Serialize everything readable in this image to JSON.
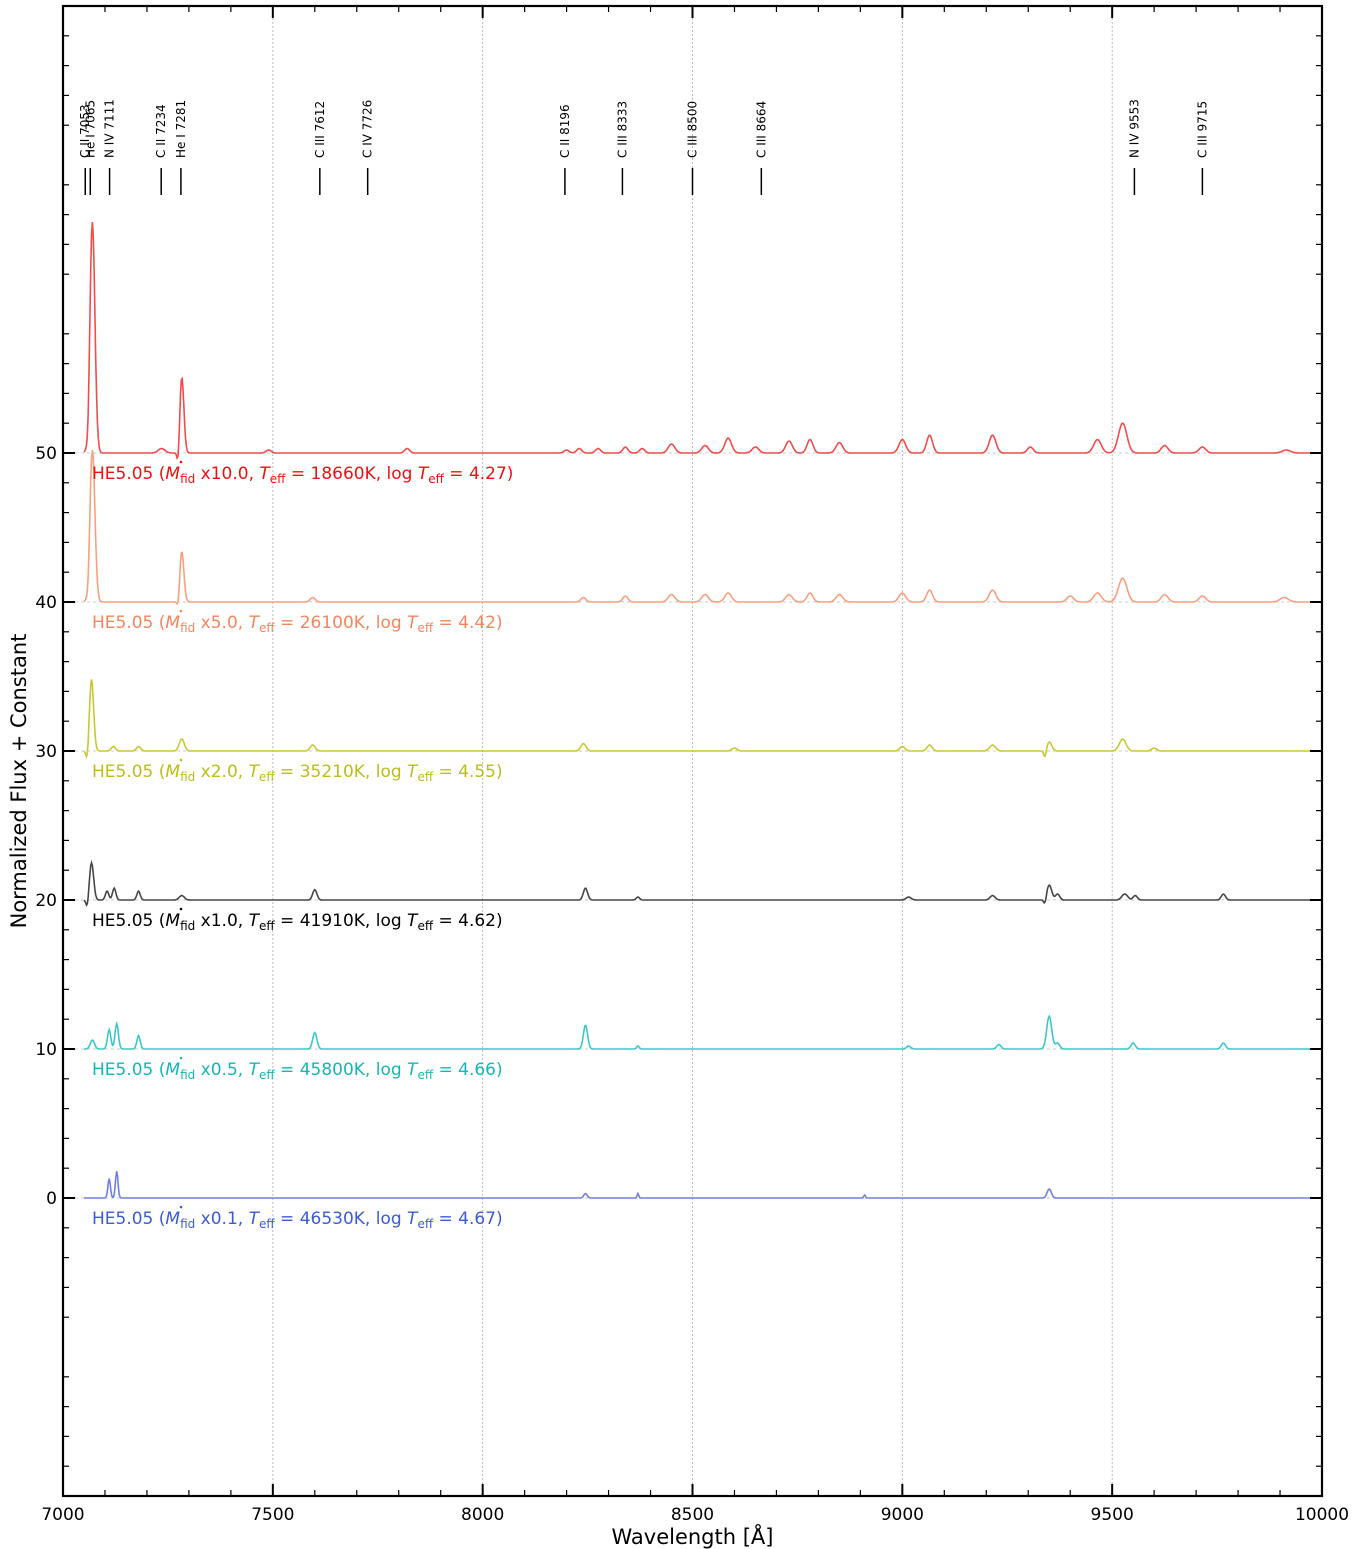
{
  "chart_data": {
    "type": "line",
    "xlabel": "Wavelength [Å]",
    "ylabel": "Normalized Flux + Constant",
    "xlim": [
      7000,
      10000
    ],
    "ylim": [
      -20,
      80
    ],
    "x_ticks": [
      7000,
      7500,
      8000,
      8500,
      9000,
      9500,
      10000
    ],
    "y_ticks": [
      0,
      10,
      20,
      30,
      40,
      50
    ],
    "grid": "vertical dashed at major x ticks",
    "line_markers": [
      {
        "label": "C II 7053",
        "x": 7053
      },
      {
        "label": "He I 7065",
        "x": 7065
      },
      {
        "label": "N IV 7111",
        "x": 7111
      },
      {
        "label": "C II 7234",
        "x": 7234
      },
      {
        "label": "He I 7281",
        "x": 7281
      },
      {
        "label": "C III 7612",
        "x": 7612
      },
      {
        "label": "C IV 7726",
        "x": 7726
      },
      {
        "label": "C II 8196",
        "x": 8196
      },
      {
        "label": "C III 8333",
        "x": 8333
      },
      {
        "label": "C III 8500",
        "x": 8500
      },
      {
        "label": "C III 8664",
        "x": 8664
      },
      {
        "label": "N IV 9553",
        "x": 9553
      },
      {
        "label": "C III 9715",
        "x": 9715
      }
    ],
    "series": [
      {
        "offset": 50,
        "color": "#f04c4c",
        "label_color": "#ee1111",
        "label_parts": {
          "pre": "HE5.05 (",
          "mult": "x10.0",
          "teff_val": "18660K",
          "logt_val": "4.27"
        },
        "peaks": [
          [
            7070,
            15.5,
            6
          ],
          [
            7235,
            0.3,
            8
          ],
          [
            7283,
            5.1,
            5
          ],
          [
            7490,
            0.2,
            6
          ],
          [
            7820,
            0.3,
            6
          ],
          [
            8200,
            0.2,
            6
          ],
          [
            8230,
            0.3,
            6
          ],
          [
            8275,
            0.3,
            6
          ],
          [
            8340,
            0.4,
            6
          ],
          [
            8380,
            0.3,
            6
          ],
          [
            8450,
            0.6,
            8
          ],
          [
            8530,
            0.5,
            8
          ],
          [
            8585,
            1.0,
            8
          ],
          [
            8650,
            0.4,
            8
          ],
          [
            8730,
            0.8,
            8
          ],
          [
            8780,
            0.9,
            7
          ],
          [
            8850,
            0.7,
            8
          ],
          [
            9000,
            0.9,
            8
          ],
          [
            9065,
            1.2,
            7
          ],
          [
            9215,
            1.2,
            8
          ],
          [
            9305,
            0.4,
            7
          ],
          [
            9465,
            0.9,
            9
          ],
          [
            9525,
            2.0,
            10
          ],
          [
            9625,
            0.5,
            8
          ],
          [
            9715,
            0.4,
            8
          ],
          [
            9915,
            0.2,
            10
          ]
        ],
        "dips": [
          [
            7060,
            -1.2,
            3
          ],
          [
            7275,
            -1.3,
            3
          ]
        ]
      },
      {
        "offset": 40,
        "color": "#f7a07f",
        "label_color": "#f2865e",
        "label_parts": {
          "pre": "HE5.05 (",
          "mult": "x5.0",
          "teff_val": "26100K",
          "logt_val": "4.42"
        },
        "peaks": [
          [
            7070,
            10.2,
            6
          ],
          [
            7283,
            3.4,
            5
          ],
          [
            7595,
            0.3,
            6
          ],
          [
            8240,
            0.3,
            6
          ],
          [
            8340,
            0.4,
            6
          ],
          [
            8450,
            0.5,
            8
          ],
          [
            8530,
            0.5,
            8
          ],
          [
            8585,
            0.6,
            8
          ],
          [
            8730,
            0.5,
            8
          ],
          [
            8780,
            0.6,
            7
          ],
          [
            8850,
            0.5,
            8
          ],
          [
            9000,
            0.6,
            8
          ],
          [
            9065,
            0.8,
            7
          ],
          [
            9215,
            0.8,
            8
          ],
          [
            9400,
            0.4,
            8
          ],
          [
            9465,
            0.6,
            9
          ],
          [
            9525,
            1.6,
            10
          ],
          [
            9625,
            0.5,
            8
          ],
          [
            9715,
            0.4,
            8
          ],
          [
            9910,
            0.3,
            10
          ]
        ],
        "dips": [
          [
            7060,
            -0.8,
            3
          ],
          [
            7275,
            -0.7,
            3
          ]
        ]
      },
      {
        "offset": 30,
        "color": "#c8c832",
        "label_color": "#bcbc1a",
        "label_parts": {
          "pre": "HE5.05 (",
          "mult": "x2.0",
          "teff_val": "35210K",
          "logt_val": "4.55"
        },
        "peaks": [
          [
            7068,
            4.8,
            5
          ],
          [
            7120,
            0.3,
            5
          ],
          [
            7180,
            0.3,
            5
          ],
          [
            7283,
            0.8,
            6
          ],
          [
            7595,
            0.4,
            6
          ],
          [
            8240,
            0.5,
            6
          ],
          [
            8600,
            0.2,
            6
          ],
          [
            9000,
            0.3,
            6
          ],
          [
            9065,
            0.4,
            6
          ],
          [
            9215,
            0.4,
            7
          ],
          [
            9350,
            0.6,
            6
          ],
          [
            9525,
            0.8,
            8
          ],
          [
            9600,
            0.2,
            6
          ]
        ],
        "dips": [
          [
            7058,
            -0.8,
            3
          ],
          [
            9340,
            -0.5,
            3
          ]
        ]
      },
      {
        "offset": 20,
        "color": "#464646",
        "label_color": "#000000",
        "label_parts": {
          "pre": "HE5.05 (",
          "mult": "x1.0",
          "teff_val": "41910K",
          "logt_val": "4.62"
        },
        "peaks": [
          [
            7068,
            2.5,
            5
          ],
          [
            7105,
            0.6,
            4
          ],
          [
            7122,
            0.8,
            4
          ],
          [
            7180,
            0.6,
            4
          ],
          [
            7283,
            0.3,
            6
          ],
          [
            7600,
            0.7,
            5
          ],
          [
            8245,
            0.8,
            5
          ],
          [
            8370,
            0.2,
            4
          ],
          [
            9015,
            0.2,
            6
          ],
          [
            9215,
            0.3,
            6
          ],
          [
            9350,
            1.0,
            6
          ],
          [
            9370,
            0.4,
            5
          ],
          [
            9530,
            0.4,
            7
          ],
          [
            9555,
            0.3,
            5
          ],
          [
            9765,
            0.4,
            5
          ]
        ],
        "dips": [
          [
            7058,
            -0.6,
            3
          ],
          [
            9340,
            -0.4,
            3
          ]
        ]
      },
      {
        "offset": 10,
        "color": "#3ec7c7",
        "label_color": "#17b6b6",
        "label_parts": {
          "pre": "HE5.05 (",
          "mult": "x0.5",
          "teff_val": "45800K",
          "logt_val": "4.66"
        },
        "peaks": [
          [
            7070,
            0.6,
            5
          ],
          [
            7110,
            1.3,
            4
          ],
          [
            7128,
            1.7,
            4
          ],
          [
            7180,
            0.9,
            4
          ],
          [
            7600,
            1.1,
            5
          ],
          [
            8245,
            1.6,
            5
          ],
          [
            8370,
            0.2,
            3
          ],
          [
            9015,
            0.2,
            5
          ],
          [
            9230,
            0.3,
            5
          ],
          [
            9350,
            2.2,
            6
          ],
          [
            9370,
            0.4,
            5
          ],
          [
            9550,
            0.4,
            5
          ],
          [
            9765,
            0.4,
            5
          ]
        ],
        "dips": []
      },
      {
        "offset": 0,
        "color": "#7080dd",
        "label_color": "#3c5bd7",
        "label_parts": {
          "pre": "HE5.05 (",
          "mult": "x0.1",
          "teff_val": "46530K",
          "logt_val": "4.67"
        },
        "peaks": [
          [
            7110,
            1.3,
            3
          ],
          [
            7128,
            1.8,
            3
          ],
          [
            8245,
            0.3,
            4
          ],
          [
            8370,
            0.3,
            2
          ],
          [
            8910,
            0.2,
            2
          ],
          [
            9350,
            0.6,
            5
          ]
        ],
        "dips": []
      }
    ]
  }
}
